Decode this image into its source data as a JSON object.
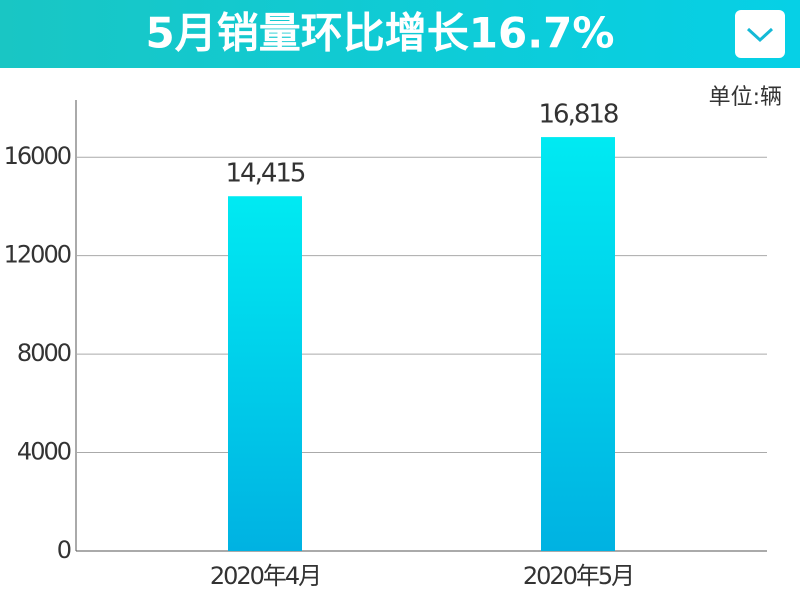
{
  "chart_data": {
    "type": "bar",
    "title": "5月销量环比增长16.7%",
    "unit": "单位:辆",
    "categories": [
      "2020年4月",
      "2020年5月"
    ],
    "values": [
      14415,
      16818
    ],
    "value_labels": [
      "14,415",
      "16,818"
    ],
    "ylim": [
      0,
      18000
    ],
    "yticks": [
      0,
      4000,
      8000,
      12000,
      16000
    ],
    "grid": true
  }
}
